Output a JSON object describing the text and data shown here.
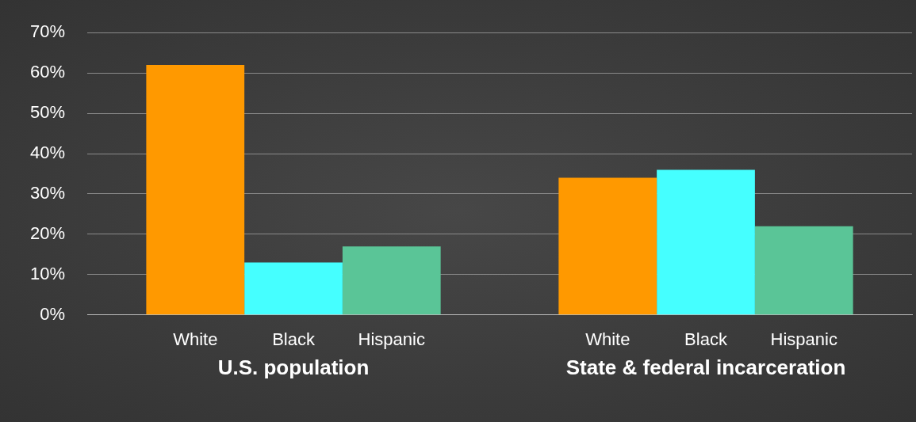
{
  "chart_data": {
    "type": "bar",
    "categories": [
      "U.S. population",
      "State & federal incarceration"
    ],
    "series": [
      {
        "name": "White",
        "color": "#ff9900",
        "values": [
          62,
          34
        ]
      },
      {
        "name": "Black",
        "color": "#45ffff",
        "values": [
          13,
          36
        ]
      },
      {
        "name": "Hispanic",
        "color": "#5ac597",
        "values": [
          17,
          22
        ]
      }
    ],
    "ylim": [
      0,
      70
    ],
    "yticks": [
      {
        "value": 0,
        "label": "0%"
      },
      {
        "value": 10,
        "label": "10%"
      },
      {
        "value": 20,
        "label": "20%"
      },
      {
        "value": 30,
        "label": "30%"
      },
      {
        "value": 40,
        "label": "40%"
      },
      {
        "value": 50,
        "label": "50%"
      },
      {
        "value": 60,
        "label": "60%"
      },
      {
        "value": 70,
        "label": "70%"
      }
    ],
    "grid": "y",
    "legend": false
  }
}
